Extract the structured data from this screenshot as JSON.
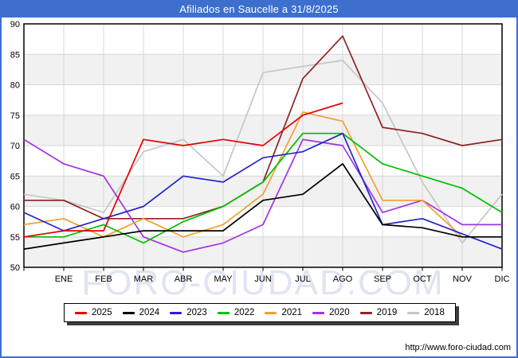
{
  "window": {
    "title": "Afiliados en Saucelle a 31/8/2025"
  },
  "footer": {
    "url": "http://www.foro-ciudad.com"
  },
  "watermark": "FORO-CIUDAD.COM",
  "colors": {
    "frame_blue": "#3d70cd",
    "band_gray": "#f1f1f1",
    "grid_gray": "#d8d8d8",
    "axis_black": "#000000",
    "watermark_gray": "#e0e4f2"
  },
  "chart_data": {
    "type": "line",
    "title": "Afiliados en Saucelle a 31/8/2025",
    "xlabel": "",
    "ylabel": "",
    "categories": [
      "ENE",
      "FEB",
      "MAR",
      "ABR",
      "MAY",
      "JUN",
      "JUL",
      "AGO",
      "SEP",
      "OCT",
      "NOV",
      "DIC"
    ],
    "x_start_note": "each series has one extra leading point drawn on the left axis before ENE",
    "ylim": [
      50,
      90
    ],
    "ytick_step": 5,
    "grid": true,
    "legend_position": "bottom",
    "series": [
      {
        "name": "2025",
        "color": "#e60000",
        "values": [
          55,
          56,
          56,
          71,
          70,
          71,
          70,
          75,
          77
        ]
      },
      {
        "name": "2024",
        "color": "#000000",
        "values": [
          53,
          54,
          55,
          56,
          56,
          56,
          61,
          62,
          67,
          57,
          56.5,
          55,
          55
        ]
      },
      {
        "name": "2023",
        "color": "#2424cc",
        "values": [
          59,
          56,
          58,
          60,
          65,
          64,
          68,
          69,
          72,
          57,
          58,
          55.5,
          53
        ]
      },
      {
        "name": "2022",
        "color": "#00bf00",
        "values": [
          55,
          55,
          57,
          54,
          57.5,
          60,
          64,
          72,
          72,
          67,
          65,
          63,
          59
        ]
      },
      {
        "name": "2021",
        "color": "#f0a030",
        "values": [
          57,
          58,
          55,
          58,
          55,
          57,
          62,
          75.5,
          74,
          61,
          61,
          55,
          55
        ]
      },
      {
        "name": "2020",
        "color": "#a233e2",
        "values": [
          71,
          67,
          65,
          55,
          52.5,
          54,
          57,
          71,
          70,
          59,
          61,
          57,
          57
        ]
      },
      {
        "name": "2019",
        "color": "#8e2323",
        "values": [
          61,
          61,
          58,
          58,
          58,
          60,
          64,
          81,
          88,
          73,
          72,
          70,
          71
        ]
      },
      {
        "name": "2018",
        "color": "#c6c6c6",
        "values": [
          62,
          61,
          59,
          69,
          71,
          65,
          82,
          83,
          84,
          77,
          64,
          54,
          62
        ]
      }
    ]
  },
  "legend": {
    "items": [
      "2025",
      "2024",
      "2023",
      "2022",
      "2021",
      "2020",
      "2019",
      "2018"
    ]
  }
}
